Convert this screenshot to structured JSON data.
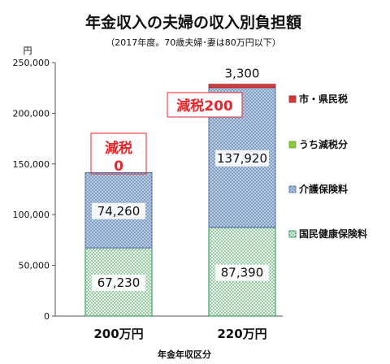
{
  "chart_data": {
    "type": "bar",
    "stacked": true,
    "title": "年金収入の夫婦の収入別負担額",
    "subtitle": "（2017年度。70歳夫婦･妻は80万円以下）",
    "ylabel": "円",
    "xlabel": "年金年収区分",
    "ylim": [
      0,
      250000
    ],
    "yticks": [
      "0",
      "50,000",
      "100,000",
      "150,000",
      "200,000",
      "250,000"
    ],
    "ytick_values": [
      0,
      50000,
      100000,
      150000,
      200000,
      250000
    ],
    "categories": [
      "200万円",
      "220万円"
    ],
    "series": [
      {
        "name": "国民健康保険料",
        "values": [
          67230,
          87390
        ],
        "labels": [
          "67,230",
          "87,390"
        ],
        "color": "#d9ead3",
        "border": "#1a8a4a",
        "pattern": "dots"
      },
      {
        "name": "介護保険料",
        "values": [
          74260,
          137920
        ],
        "labels": [
          "74,260",
          "137,920"
        ],
        "color": "#b4c7dc",
        "border": "#4a6fa0",
        "pattern": "crosshatch"
      },
      {
        "name": "うち減税分",
        "values": [
          0,
          0
        ],
        "labels": [
          "",
          ""
        ],
        "color": "#8dc63f",
        "border": "#6aa22a",
        "pattern": "solid"
      },
      {
        "name": "市・県民税",
        "values": [
          0,
          3300
        ],
        "labels": [
          "",
          "3,300"
        ],
        "color": "#d33a3a",
        "border": "#a12020",
        "pattern": "solid"
      }
    ],
    "legend_order": [
      "市・県民税",
      "うち減税分",
      "介護保険料",
      "国民健康保険料"
    ],
    "legend_position": "right",
    "annotations": [
      {
        "category": "200万円",
        "lines": [
          "減税",
          "0"
        ],
        "color": "#e8262b"
      },
      {
        "category": "220万円",
        "lines": [
          "減税200"
        ],
        "color": "#e8262b"
      }
    ],
    "grid": false
  }
}
